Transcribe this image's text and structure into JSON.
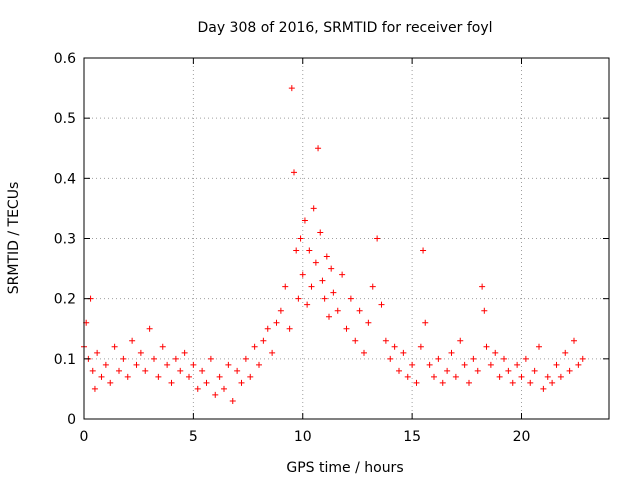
{
  "chart_data": {
    "type": "scatter",
    "title": "Day 308 of 2016, SRMTID for receiver foyl",
    "xlabel": "GPS time / hours",
    "ylabel": "SRMTID / TECUs",
    "xlim": [
      0,
      24
    ],
    "ylim": [
      0,
      0.6
    ],
    "xticks": [
      0,
      5,
      10,
      15,
      20
    ],
    "yticks": [
      0,
      0.1,
      0.2,
      0.3,
      0.4,
      0.5,
      0.6
    ],
    "xtick_labels": [
      "0",
      "5",
      "10",
      "15",
      "20"
    ],
    "ytick_labels": [
      "0",
      "0.1",
      "0.2",
      "0.3",
      "0.4",
      "0.5",
      "0.6"
    ],
    "grid": true,
    "legend": "none",
    "marker": "+",
    "series": [
      {
        "name": "SRMTID",
        "color": "#ff0000",
        "x": [
          0.0,
          0.1,
          0.2,
          0.3,
          0.4,
          0.5,
          0.6,
          0.8,
          1.0,
          1.2,
          1.4,
          1.6,
          1.8,
          2.0,
          2.2,
          2.4,
          2.6,
          2.8,
          3.0,
          3.2,
          3.4,
          3.6,
          3.8,
          4.0,
          4.2,
          4.4,
          4.6,
          4.8,
          5.0,
          5.2,
          5.4,
          5.6,
          5.8,
          6.0,
          6.2,
          6.4,
          6.6,
          6.8,
          7.0,
          7.2,
          7.4,
          7.6,
          7.8,
          8.0,
          8.2,
          8.4,
          8.6,
          8.8,
          9.0,
          9.2,
          9.4,
          9.5,
          9.6,
          9.7,
          9.8,
          9.9,
          10.0,
          10.1,
          10.2,
          10.3,
          10.4,
          10.5,
          10.6,
          10.7,
          10.8,
          10.9,
          11.0,
          11.1,
          11.2,
          11.3,
          11.4,
          11.6,
          11.8,
          12.0,
          12.2,
          12.4,
          12.6,
          12.8,
          13.0,
          13.2,
          13.4,
          13.6,
          13.8,
          14.0,
          14.2,
          14.4,
          14.6,
          14.8,
          15.0,
          15.2,
          15.4,
          15.5,
          15.6,
          15.8,
          16.0,
          16.2,
          16.4,
          16.6,
          16.8,
          17.0,
          17.2,
          17.4,
          17.6,
          17.8,
          18.0,
          18.2,
          18.3,
          18.4,
          18.6,
          18.8,
          19.0,
          19.2,
          19.4,
          19.6,
          19.8,
          20.0,
          20.2,
          20.4,
          20.6,
          20.8,
          21.0,
          21.2,
          21.4,
          21.6,
          21.8,
          22.0,
          22.2,
          22.4,
          22.6,
          22.8
        ],
        "y": [
          0.12,
          0.16,
          0.1,
          0.2,
          0.08,
          0.05,
          0.11,
          0.07,
          0.09,
          0.06,
          0.12,
          0.08,
          0.1,
          0.07,
          0.13,
          0.09,
          0.11,
          0.08,
          0.15,
          0.1,
          0.07,
          0.12,
          0.09,
          0.06,
          0.1,
          0.08,
          0.11,
          0.07,
          0.09,
          0.05,
          0.08,
          0.06,
          0.1,
          0.04,
          0.07,
          0.05,
          0.09,
          0.03,
          0.08,
          0.06,
          0.1,
          0.07,
          0.12,
          0.09,
          0.13,
          0.15,
          0.11,
          0.16,
          0.18,
          0.22,
          0.15,
          0.55,
          0.41,
          0.28,
          0.2,
          0.3,
          0.24,
          0.33,
          0.19,
          0.28,
          0.22,
          0.35,
          0.26,
          0.45,
          0.31,
          0.23,
          0.2,
          0.27,
          0.17,
          0.25,
          0.21,
          0.18,
          0.24,
          0.15,
          0.2,
          0.13,
          0.18,
          0.11,
          0.16,
          0.22,
          0.3,
          0.19,
          0.13,
          0.1,
          0.12,
          0.08,
          0.11,
          0.07,
          0.09,
          0.06,
          0.12,
          0.28,
          0.16,
          0.09,
          0.07,
          0.1,
          0.06,
          0.08,
          0.11,
          0.07,
          0.13,
          0.09,
          0.06,
          0.1,
          0.08,
          0.22,
          0.18,
          0.12,
          0.09,
          0.11,
          0.07,
          0.1,
          0.08,
          0.06,
          0.09,
          0.07,
          0.1,
          0.06,
          0.08,
          0.12,
          0.05,
          0.07,
          0.06,
          0.09,
          0.07,
          0.11,
          0.08,
          0.13,
          0.09,
          0.1
        ]
      }
    ]
  }
}
